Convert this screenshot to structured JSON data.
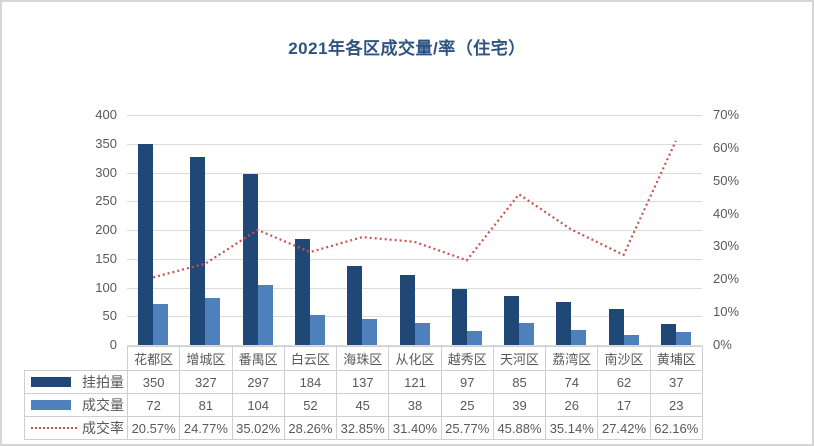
{
  "frame": {
    "background": "#ffffff",
    "border_color": "#d6d6d6"
  },
  "chart_data": {
    "type": "bar",
    "subtype": "combo-bar-line",
    "title": "2021年各区成交量/率（住宅）",
    "categories": [
      "花都区",
      "增城区",
      "番禺区",
      "白云区",
      "海珠区",
      "从化区",
      "越秀区",
      "天河区",
      "荔湾区",
      "南沙区",
      "黄埔区"
    ],
    "series": [
      {
        "name": "挂拍量",
        "type": "bar",
        "color": "#1f4876",
        "axis": "left",
        "values": [
          350,
          327,
          297,
          184,
          137,
          121,
          97,
          85,
          74,
          62,
          37
        ]
      },
      {
        "name": "成交量",
        "type": "bar",
        "color": "#4e81bb",
        "axis": "left",
        "values": [
          72,
          81,
          104,
          52,
          45,
          38,
          25,
          39,
          26,
          17,
          23
        ]
      },
      {
        "name": "成交率",
        "type": "line",
        "line_style": "dotted",
        "color": "#c9534f",
        "axis": "right",
        "values": [
          20.57,
          24.77,
          35.02,
          28.26,
          32.85,
          31.4,
          25.77,
          45.88,
          35.14,
          27.42,
          62.16
        ],
        "labels": [
          "20.57%",
          "24.77%",
          "35.02%",
          "28.26%",
          "32.85%",
          "31.40%",
          "25.77%",
          "45.88%",
          "35.14%",
          "27.42%",
          "62.16%"
        ]
      }
    ],
    "left_axis": {
      "min": 0,
      "max": 400,
      "step": 50,
      "ticks": [
        "400",
        "350",
        "300",
        "250",
        "200",
        "150",
        "100",
        "50",
        "0"
      ]
    },
    "right_axis": {
      "min": 0,
      "max": 70,
      "step": 10,
      "ticks": [
        "70%",
        "60%",
        "50%",
        "40%",
        "30%",
        "20%",
        "10%",
        "0%"
      ]
    },
    "grid": "horizontal",
    "gridline_color": "#dcdcdc",
    "legend_position": "data-table-left",
    "text_color": "#595959",
    "title_color": "#2e5380",
    "table_border_color": "#cfcfcf"
  }
}
